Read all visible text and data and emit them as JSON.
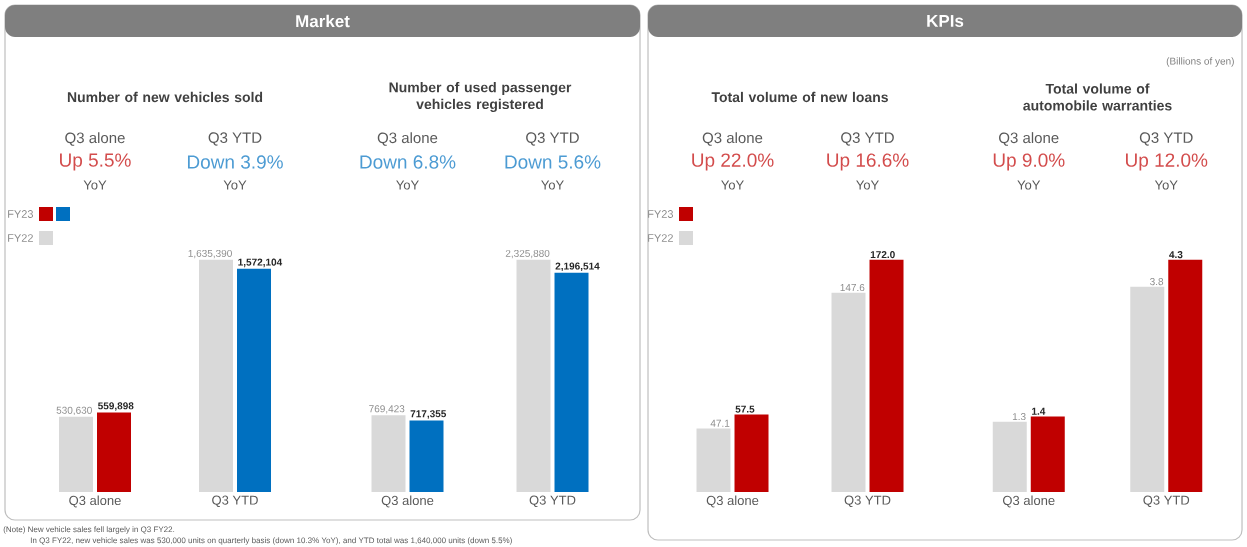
{
  "chart_data": [
    {
      "type": "bar",
      "title": "Number of new vehicles sold",
      "categories": [
        "Q3 alone",
        "Q3 YTD"
      ],
      "legend": "top left",
      "series": [
        {
          "name": "FY22",
          "color": "#d9d9d9",
          "values": [
            530630,
            1635390
          ],
          "value_labels": [
            "530,630",
            "1,635,390"
          ]
        },
        {
          "name": "FY23",
          "colors": [
            "#c00000",
            "#0070c0"
          ],
          "values": [
            559898,
            1572104
          ],
          "value_labels": [
            "559,898",
            "1,572,104"
          ]
        }
      ],
      "annotations": [
        "Q3 alone",
        "Up 5.5%",
        "YoY",
        "Q3 YTD",
        "Down 3.9%",
        "YoY",
        "Market",
        "(Note) New vehicle sales fell largely in Q3 FY22.",
        "In Q3 FY22, new vehicle sales was 530,000 units on quarterly basis (down 10.3% YoY), and YTD total was 1,640,000 units (down 5.5%)"
      ]
    },
    {
      "type": "bar",
      "title": "Number of used passenger vehicles registered",
      "categories": [
        "Q3 alone",
        "Q3 YTD"
      ],
      "series": [
        {
          "color": "#d9d9d9",
          "values": [
            769423,
            2325880
          ],
          "value_labels": [
            "769,423",
            "2,325,880"
          ]
        },
        {
          "color": "#0070c0",
          "values": [
            717355,
            2196514
          ],
          "value_labels": [
            "717,355",
            "2,196,514"
          ]
        }
      ],
      "annotations": [
        "Q3 alone",
        "Down 6.8%",
        "YoY",
        "Q3 YTD",
        "Down 5.6%",
        "YoY"
      ]
    },
    {
      "type": "bar",
      "title": "Total volume of new loans",
      "categories": [
        "Q3 alone",
        "Q3 YTD"
      ],
      "legend": "top left",
      "series": [
        {
          "name": "FY22",
          "color": "#d9d9d9",
          "values": [
            47.1,
            147.6
          ],
          "value_labels": [
            "47.1",
            "147.6"
          ]
        },
        {
          "name": "FY23",
          "color": "#c00000",
          "values": [
            57.5,
            172.0
          ],
          "value_labels": [
            "57.5",
            "172.0"
          ]
        }
      ],
      "annotations": [
        "Q3 alone",
        "Up 22.0%",
        "YoY",
        "Q3 YTD",
        "Up 16.6%",
        "YoY",
        "KPIs"
      ]
    },
    {
      "type": "bar",
      "title": "Total volume of automobile warranties",
      "categories": [
        "Q3 alone",
        "Q3 YTD"
      ],
      "series": [
        {
          "color": "#d9d9d9",
          "values": [
            1.3,
            3.8
          ],
          "value_labels": [
            "1.3",
            "3.8"
          ]
        },
        {
          "color": "#c00000",
          "values": [
            1.4,
            4.3
          ],
          "value_labels": [
            "1.4",
            "4.3"
          ]
        }
      ],
      "annotations": [
        "Q3 alone",
        "Up 9.0%",
        "YoY",
        "Q3 YTD",
        "Up 12.0%",
        "YoY",
        "(Billions of yen)"
      ]
    }
  ]
}
